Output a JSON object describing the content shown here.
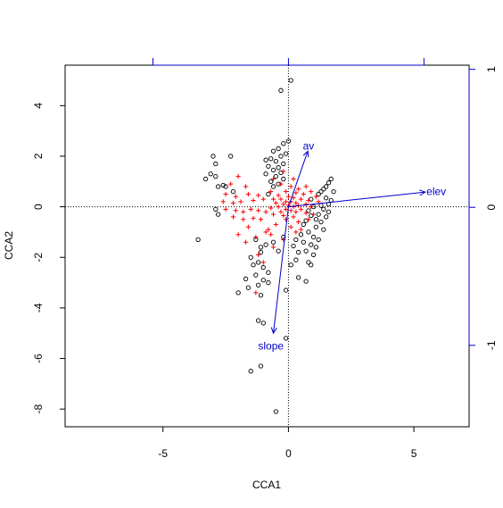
{
  "chart_data": {
    "type": "scatter",
    "title": "",
    "xlabel": "CCA1",
    "ylabel": "CCA2",
    "xlim": [
      -8.9,
      7.2
    ],
    "ylim": [
      -8.7,
      5.6
    ],
    "x_ticks": [
      -5,
      0,
      5
    ],
    "x_tick_labels": [
      "-5",
      "0",
      "5"
    ],
    "y_ticks": [
      4,
      2,
      0,
      -2,
      -4,
      -6,
      -8
    ],
    "y_tick_labels": [
      "4",
      "2",
      "0",
      "-2",
      "-4",
      "-6",
      "-8"
    ],
    "secondary_axes": {
      "top_ticks": [
        -5.4,
        0,
        5.4
      ],
      "right_ticks": [
        1,
        0,
        -1
      ],
      "right_tick_labels": [
        "1",
        "0",
        "-1"
      ],
      "right_range": [
        -1.59,
        1.03
      ],
      "color": "#0000cc"
    },
    "reference_lines": {
      "x": 0,
      "y": 0,
      "style": "dotted"
    },
    "grid": false,
    "series": [
      {
        "marker": "circle",
        "color": "#000000",
        "points": [
          [
            0.1,
            5.0
          ],
          [
            -0.3,
            4.6
          ],
          [
            0.0,
            2.6
          ],
          [
            -0.2,
            2.5
          ],
          [
            -0.4,
            2.3
          ],
          [
            -0.6,
            2.2
          ],
          [
            -0.1,
            2.1
          ],
          [
            -0.3,
            2.0
          ],
          [
            -0.7,
            1.9
          ],
          [
            -0.9,
            1.85
          ],
          [
            -0.5,
            1.8
          ],
          [
            -0.2,
            1.7
          ],
          [
            -0.8,
            1.6
          ],
          [
            -0.4,
            1.55
          ],
          [
            -0.6,
            1.45
          ],
          [
            -0.3,
            1.35
          ],
          [
            -0.9,
            1.3
          ],
          [
            -0.5,
            1.2
          ],
          [
            -0.2,
            1.1
          ],
          [
            -0.7,
            1.0
          ],
          [
            -0.4,
            0.9
          ],
          [
            -0.6,
            0.8
          ],
          [
            -0.8,
            0.5
          ],
          [
            -3.0,
            2.0
          ],
          [
            -2.9,
            1.7
          ],
          [
            -2.3,
            2.0
          ],
          [
            -3.1,
            1.3
          ],
          [
            -2.9,
            1.2
          ],
          [
            -3.3,
            1.1
          ],
          [
            -2.8,
            0.8
          ],
          [
            -2.6,
            0.85
          ],
          [
            -2.5,
            0.8
          ],
          [
            -2.2,
            0.6
          ],
          [
            -2.9,
            -0.1
          ],
          [
            -2.8,
            -0.3
          ],
          [
            -3.6,
            -1.3
          ],
          [
            1.7,
            1.1
          ],
          [
            1.6,
            0.95
          ],
          [
            1.5,
            0.8
          ],
          [
            1.4,
            0.7
          ],
          [
            1.3,
            0.6
          ],
          [
            1.8,
            0.6
          ],
          [
            1.2,
            0.5
          ],
          [
            1.5,
            0.35
          ],
          [
            0.9,
            0.3
          ],
          [
            1.7,
            0.25
          ],
          [
            1.6,
            0.1
          ],
          [
            1.3,
            0.05
          ],
          [
            1.0,
            0.0
          ],
          [
            1.4,
            -0.1
          ],
          [
            0.8,
            -0.15
          ],
          [
            1.6,
            -0.2
          ],
          [
            1.2,
            -0.3
          ],
          [
            0.9,
            -0.35
          ],
          [
            1.5,
            -0.4
          ],
          [
            1.1,
            -0.5
          ],
          [
            0.7,
            -0.55
          ],
          [
            1.3,
            -0.6
          ],
          [
            0.6,
            -0.7
          ],
          [
            1.1,
            -0.8
          ],
          [
            1.4,
            -0.9
          ],
          [
            0.8,
            -1.0
          ],
          [
            0.5,
            -1.1
          ],
          [
            1.0,
            -1.2
          ],
          [
            0.3,
            -1.3
          ],
          [
            1.2,
            -1.3
          ],
          [
            0.6,
            -1.4
          ],
          [
            0.9,
            -1.5
          ],
          [
            0.2,
            -1.55
          ],
          [
            1.1,
            -1.6
          ],
          [
            0.7,
            -1.75
          ],
          [
            0.4,
            -1.8
          ],
          [
            1.0,
            -1.9
          ],
          [
            0.3,
            -2.1
          ],
          [
            0.8,
            -2.2
          ],
          [
            0.9,
            -2.3
          ],
          [
            0.1,
            -2.3
          ],
          [
            0.4,
            -2.8
          ],
          [
            0.7,
            -2.95
          ],
          [
            -0.2,
            -1.2
          ],
          [
            -0.6,
            -1.4
          ],
          [
            -0.9,
            -1.5
          ],
          [
            -1.1,
            -1.6
          ],
          [
            -1.3,
            -1.3
          ],
          [
            -0.4,
            -1.75
          ],
          [
            -1.1,
            -1.8
          ],
          [
            -1.5,
            -2.0
          ],
          [
            -1.2,
            -2.2
          ],
          [
            -1.4,
            -2.3
          ],
          [
            -1.0,
            -2.4
          ],
          [
            -0.8,
            -2.6
          ],
          [
            -1.3,
            -2.7
          ],
          [
            -1.7,
            -2.85
          ],
          [
            -1.0,
            -2.9
          ],
          [
            -0.8,
            -3.0
          ],
          [
            -1.2,
            -3.1
          ],
          [
            -0.1,
            -3.3
          ],
          [
            -1.6,
            -3.2
          ],
          [
            -2.0,
            -3.4
          ],
          [
            -1.1,
            -3.5
          ],
          [
            -1.2,
            -4.5
          ],
          [
            -1.0,
            -4.6
          ],
          [
            -0.1,
            -5.2
          ],
          [
            -1.1,
            -6.3
          ],
          [
            -1.5,
            -6.5
          ],
          [
            -0.5,
            -8.1
          ]
        ]
      },
      {
        "marker": "plus",
        "color": "#ff0000",
        "points": [
          [
            -0.2,
            1.4
          ],
          [
            -0.6,
            1.1
          ],
          [
            0.2,
            1.1
          ],
          [
            -0.3,
            0.9
          ],
          [
            0.1,
            0.8
          ],
          [
            0.4,
            0.7
          ],
          [
            -0.7,
            0.6
          ],
          [
            -0.1,
            0.6
          ],
          [
            0.3,
            0.55
          ],
          [
            0.6,
            0.5
          ],
          [
            -0.4,
            0.45
          ],
          [
            0.0,
            0.4
          ],
          [
            0.2,
            0.35
          ],
          [
            -0.6,
            0.3
          ],
          [
            -0.3,
            0.3
          ],
          [
            0.5,
            0.3
          ],
          [
            0.8,
            0.25
          ],
          [
            -0.1,
            0.2
          ],
          [
            0.1,
            0.2
          ],
          [
            0.3,
            0.15
          ],
          [
            -0.5,
            0.15
          ],
          [
            0.7,
            0.1
          ],
          [
            -0.2,
            0.1
          ],
          [
            0.0,
            0.05
          ],
          [
            0.4,
            0.05
          ],
          [
            -0.4,
            0.0
          ],
          [
            0.2,
            0.0
          ],
          [
            0.9,
            0.0
          ],
          [
            -0.7,
            -0.05
          ],
          [
            -0.1,
            -0.1
          ],
          [
            0.5,
            -0.1
          ],
          [
            0.1,
            -0.15
          ],
          [
            -0.3,
            -0.2
          ],
          [
            0.3,
            -0.2
          ],
          [
            0.7,
            -0.25
          ],
          [
            -0.6,
            -0.3
          ],
          [
            -0.2,
            -0.35
          ],
          [
            0.2,
            -0.4
          ],
          [
            1.0,
            -0.3
          ],
          [
            -0.1,
            -0.5
          ],
          [
            0.4,
            -0.6
          ],
          [
            -0.5,
            -0.7
          ],
          [
            0.1,
            -0.8
          ],
          [
            -0.8,
            -0.9
          ],
          [
            0.3,
            -1.0
          ],
          [
            -0.2,
            -1.3
          ],
          [
            -0.6,
            -1.6
          ],
          [
            -1.2,
            -1.9
          ],
          [
            -1.0,
            -2.2
          ],
          [
            -1.3,
            -3.4
          ],
          [
            -2.0,
            1.2
          ],
          [
            -2.3,
            0.9
          ],
          [
            -1.7,
            0.8
          ],
          [
            -2.5,
            0.5
          ],
          [
            -2.1,
            0.4
          ],
          [
            -1.6,
            0.5
          ],
          [
            -1.2,
            0.45
          ],
          [
            -2.6,
            0.2
          ],
          [
            -2.2,
            0.15
          ],
          [
            -1.9,
            0.2
          ],
          [
            -1.4,
            0.25
          ],
          [
            -1.0,
            0.3
          ],
          [
            -2.5,
            -0.1
          ],
          [
            -2.1,
            -0.15
          ],
          [
            -1.8,
            -0.2
          ],
          [
            -1.5,
            -0.1
          ],
          [
            -1.2,
            -0.15
          ],
          [
            -0.9,
            -0.2
          ],
          [
            -2.2,
            -0.4
          ],
          [
            -1.8,
            -0.5
          ],
          [
            -1.4,
            -0.45
          ],
          [
            -1.1,
            -0.5
          ],
          [
            -1.6,
            -0.8
          ],
          [
            -2.0,
            -1.1
          ],
          [
            -1.3,
            -1.2
          ],
          [
            -0.9,
            -1.0
          ],
          [
            -1.7,
            -1.4
          ],
          [
            -0.7,
            -1.1
          ],
          [
            0.7,
            0.8
          ],
          [
            0.9,
            0.6
          ],
          [
            1.1,
            0.4
          ],
          [
            1.2,
            0.2
          ],
          [
            0.8,
            -0.5
          ],
          [
            0.5,
            -0.9
          ]
        ]
      }
    ],
    "arrows": [
      {
        "label": "av",
        "x": 0.77,
        "y": 2.2,
        "label_x": 0.8,
        "label_y": 2.4
      },
      {
        "label": "elev",
        "x": 5.45,
        "y": 0.58,
        "label_x": 5.5,
        "label_y": 0.6
      },
      {
        "label": "slope",
        "x": -0.6,
        "y": -5.0,
        "label_x": -0.7,
        "label_y": -5.5
      }
    ],
    "arrow_color": "#0000cc",
    "legend": "none"
  }
}
